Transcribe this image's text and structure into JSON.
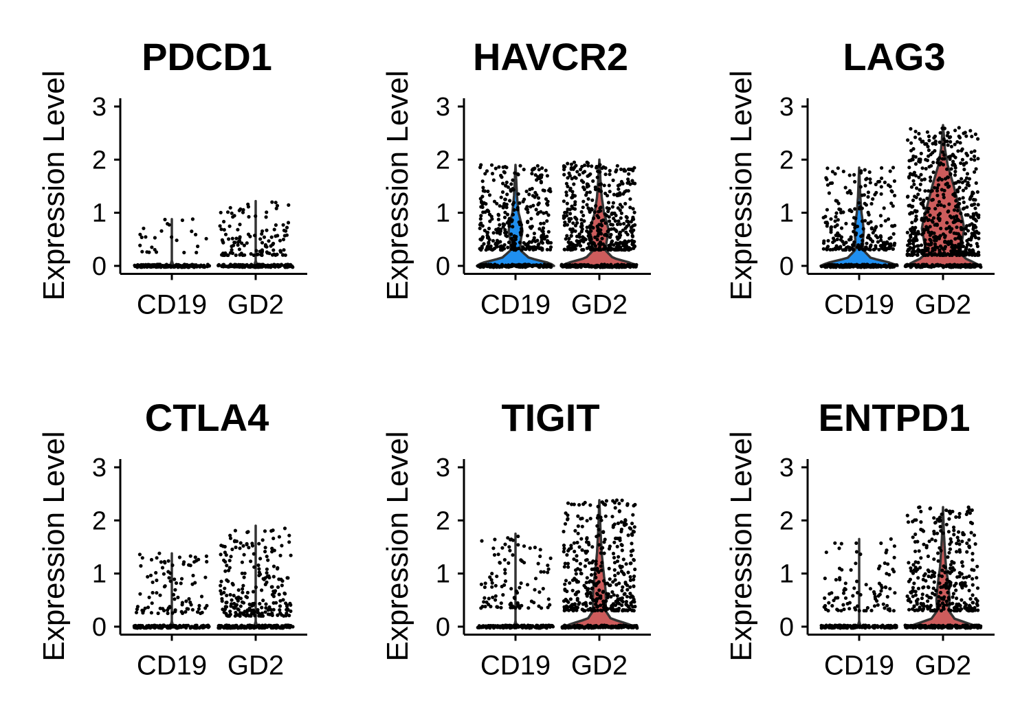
{
  "chart_data": [
    {
      "type": "violin",
      "title": "PDCD1",
      "xlabel": "",
      "ylabel": "Expression Level",
      "categories": [
        "CD19",
        "GD2"
      ],
      "yticks": [
        0,
        1,
        2,
        3
      ],
      "ylim": [
        -0.15,
        3.1
      ],
      "colors": {
        "CD19": "#1f8ff0",
        "GD2": "#cd5c5c"
      },
      "groups": [
        {
          "name": "CD19",
          "max": 0.88,
          "zero_fraction": 0.9,
          "density": [
            [
              0,
              0.04
            ],
            [
              0.1,
              0.0
            ],
            [
              0.88,
              0.0
            ]
          ],
          "points_nonzero": 26,
          "nonzero_range": [
            0.25,
            0.88
          ]
        },
        {
          "name": "GD2",
          "max": 1.22,
          "zero_fraction": 0.75,
          "density": [
            [
              0,
              0.04
            ],
            [
              0.1,
              0.0
            ],
            [
              1.22,
              0.0
            ]
          ],
          "points_nonzero": 120,
          "nonzero_range": [
            0.2,
            1.2
          ]
        }
      ]
    },
    {
      "type": "violin",
      "title": "HAVCR2",
      "xlabel": "",
      "ylabel": "Expression Level",
      "categories": [
        "CD19",
        "GD2"
      ],
      "yticks": [
        0,
        1,
        2,
        3
      ],
      "ylim": [
        -0.15,
        3.1
      ],
      "colors": {
        "CD19": "#1f8ff0",
        "GD2": "#cd5c5c"
      },
      "groups": [
        {
          "name": "CD19",
          "max": 1.9,
          "zero_fraction": 0.45,
          "density": [
            [
              0,
              1.0
            ],
            [
              0.05,
              0.9
            ],
            [
              0.15,
              0.35
            ],
            [
              0.3,
              0.12
            ],
            [
              0.5,
              0.14
            ],
            [
              0.65,
              0.18
            ],
            [
              0.8,
              0.15
            ],
            [
              1.0,
              0.08
            ],
            [
              1.3,
              0.04
            ],
            [
              1.6,
              0.02
            ],
            [
              1.9,
              0.0
            ]
          ],
          "points_nonzero": 330,
          "nonzero_range": [
            0.3,
            1.9
          ]
        },
        {
          "name": "GD2",
          "max": 2.0,
          "zero_fraction": 0.35,
          "density": [
            [
              0,
              0.95
            ],
            [
              0.05,
              0.85
            ],
            [
              0.15,
              0.35
            ],
            [
              0.3,
              0.15
            ],
            [
              0.5,
              0.2
            ],
            [
              0.65,
              0.25
            ],
            [
              0.8,
              0.2
            ],
            [
              1.0,
              0.12
            ],
            [
              1.3,
              0.06
            ],
            [
              1.6,
              0.03
            ],
            [
              2.0,
              0.0
            ]
          ],
          "points_nonzero": 430,
          "nonzero_range": [
            0.3,
            1.95
          ]
        }
      ]
    },
    {
      "type": "violin",
      "title": "LAG3",
      "xlabel": "",
      "ylabel": "Expression Level",
      "categories": [
        "CD19",
        "GD2"
      ],
      "yticks": [
        0,
        1,
        2,
        3
      ],
      "ylim": [
        -0.15,
        3.1
      ],
      "colors": {
        "CD19": "#1f8ff0",
        "GD2": "#cd5c5c"
      },
      "groups": [
        {
          "name": "CD19",
          "max": 1.85,
          "zero_fraction": 0.55,
          "density": [
            [
              0,
              1.0
            ],
            [
              0.05,
              0.85
            ],
            [
              0.15,
              0.3
            ],
            [
              0.3,
              0.1
            ],
            [
              0.5,
              0.1
            ],
            [
              0.65,
              0.12
            ],
            [
              0.8,
              0.1
            ],
            [
              1.0,
              0.06
            ],
            [
              1.3,
              0.03
            ],
            [
              1.85,
              0.0
            ]
          ],
          "points_nonzero": 240,
          "nonzero_range": [
            0.3,
            1.85
          ]
        },
        {
          "name": "GD2",
          "max": 2.65,
          "zero_fraction": 0.2,
          "density": [
            [
              0,
              0.9
            ],
            [
              0.05,
              0.85
            ],
            [
              0.15,
              0.55
            ],
            [
              0.3,
              0.45
            ],
            [
              0.5,
              0.5
            ],
            [
              0.7,
              0.55
            ],
            [
              0.9,
              0.5
            ],
            [
              1.1,
              0.42
            ],
            [
              1.3,
              0.35
            ],
            [
              1.5,
              0.28
            ],
            [
              1.7,
              0.2
            ],
            [
              1.9,
              0.12
            ],
            [
              2.2,
              0.05
            ],
            [
              2.65,
              0.0
            ]
          ],
          "points_nonzero": 600,
          "nonzero_range": [
            0.2,
            2.6
          ]
        }
      ]
    },
    {
      "type": "violin",
      "title": "CTLA4",
      "xlabel": "",
      "ylabel": "Expression Level",
      "categories": [
        "CD19",
        "GD2"
      ],
      "yticks": [
        0,
        1,
        2,
        3
      ],
      "ylim": [
        -0.15,
        3.1
      ],
      "colors": {
        "CD19": "#1f8ff0",
        "GD2": "#cd5c5c"
      },
      "groups": [
        {
          "name": "CD19",
          "max": 1.38,
          "zero_fraction": 0.85,
          "density": [
            [
              0,
              0.04
            ],
            [
              0.1,
              0.0
            ],
            [
              1.38,
              0.0
            ]
          ],
          "points_nonzero": 95,
          "nonzero_range": [
            0.25,
            1.38
          ]
        },
        {
          "name": "GD2",
          "max": 1.9,
          "zero_fraction": 0.7,
          "density": [
            [
              0,
              0.04
            ],
            [
              0.1,
              0.0
            ],
            [
              1.9,
              0.0
            ]
          ],
          "points_nonzero": 230,
          "nonzero_range": [
            0.2,
            1.85
          ]
        }
      ]
    },
    {
      "type": "violin",
      "title": "TIGIT",
      "xlabel": "",
      "ylabel": "Expression Level",
      "categories": [
        "CD19",
        "GD2"
      ],
      "yticks": [
        0,
        1,
        2,
        3
      ],
      "ylim": [
        -0.15,
        3.1
      ],
      "colors": {
        "CD19": "#1f8ff0",
        "GD2": "#cd5c5c"
      },
      "groups": [
        {
          "name": "CD19",
          "max": 1.75,
          "zero_fraction": 0.85,
          "density": [
            [
              0,
              0.04
            ],
            [
              0.1,
              0.0
            ],
            [
              1.75,
              0.0
            ]
          ],
          "points_nonzero": 100,
          "nonzero_range": [
            0.35,
            1.7
          ]
        },
        {
          "name": "GD2",
          "max": 2.38,
          "zero_fraction": 0.45,
          "density": [
            [
              0,
              0.9
            ],
            [
              0.05,
              0.75
            ],
            [
              0.15,
              0.3
            ],
            [
              0.3,
              0.16
            ],
            [
              0.5,
              0.17
            ],
            [
              0.7,
              0.16
            ],
            [
              0.9,
              0.13
            ],
            [
              1.1,
              0.1
            ],
            [
              1.4,
              0.06
            ],
            [
              1.8,
              0.03
            ],
            [
              2.38,
              0.0
            ]
          ],
          "points_nonzero": 400,
          "nonzero_range": [
            0.3,
            2.38
          ]
        }
      ]
    },
    {
      "type": "violin",
      "title": "ENTPD1",
      "xlabel": "",
      "ylabel": "Expression Level",
      "categories": [
        "CD19",
        "GD2"
      ],
      "yticks": [
        0,
        1,
        2,
        3
      ],
      "ylim": [
        -0.15,
        3.1
      ],
      "colors": {
        "CD19": "#1f8ff0",
        "GD2": "#cd5c5c"
      },
      "groups": [
        {
          "name": "CD19",
          "max": 1.65,
          "zero_fraction": 0.85,
          "density": [
            [
              0,
              0.04
            ],
            [
              0.1,
              0.0
            ],
            [
              1.65,
              0.0
            ]
          ],
          "points_nonzero": 95,
          "nonzero_range": [
            0.3,
            1.65
          ]
        },
        {
          "name": "GD2",
          "max": 2.25,
          "zero_fraction": 0.5,
          "density": [
            [
              0,
              0.9
            ],
            [
              0.05,
              0.7
            ],
            [
              0.15,
              0.3
            ],
            [
              0.3,
              0.15
            ],
            [
              0.5,
              0.17
            ],
            [
              0.7,
              0.15
            ],
            [
              0.9,
              0.12
            ],
            [
              1.1,
              0.08
            ],
            [
              1.4,
              0.05
            ],
            [
              1.8,
              0.02
            ],
            [
              2.25,
              0.0
            ]
          ],
          "points_nonzero": 330,
          "nonzero_range": [
            0.3,
            2.25
          ]
        }
      ]
    }
  ]
}
